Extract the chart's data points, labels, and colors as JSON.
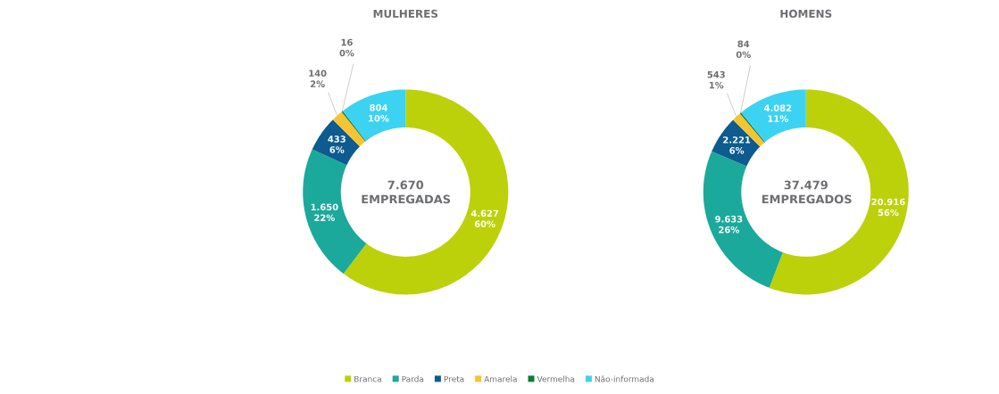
{
  "chart_data": [
    {
      "type": "donut",
      "title": "MULHERES",
      "categories": [
        "Branca",
        "Parda",
        "Preta",
        "Amarela",
        "Vermelha",
        "Não-informada"
      ],
      "values": [
        4627,
        1650,
        433,
        140,
        16,
        804
      ],
      "value_labels": [
        "4.627 60%",
        "1.650 22%",
        "433 6%",
        "140 2%",
        "16 0%",
        "804 10%"
      ],
      "colors": [
        "#bcd10a",
        "#1ba99c",
        "#0d5b8f",
        "#f5c431",
        "#0f7a3c",
        "#3cd3f3"
      ],
      "annotations": [
        "7.670 EMPREGADAS"
      ],
      "legend": "bottom"
    },
    {
      "type": "donut",
      "title": "HOMENS",
      "categories": [
        null,
        null,
        null,
        null,
        null,
        null
      ],
      "values": [
        20916,
        9633,
        2221,
        543,
        84,
        4082
      ],
      "value_labels": [
        "20.916 56%",
        "9.633 26%",
        "2.221 6%",
        "543 1%",
        "84 0%",
        "4.082 11%"
      ],
      "colors": [
        "#bcd10a",
        "#1ba99c",
        "#0d5b8f",
        "#f5c431",
        "#0f7a3c",
        "#3cd3f3"
      ],
      "annotations": [
        "37.479 EMPREGADOS"
      ]
    }
  ]
}
